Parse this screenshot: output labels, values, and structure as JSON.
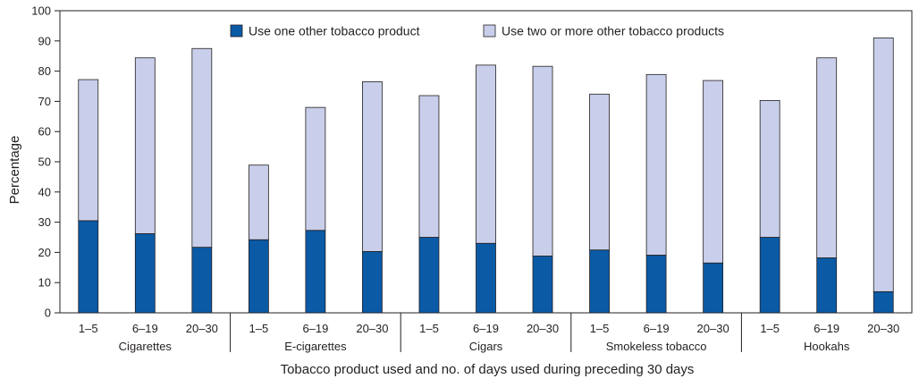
{
  "chart_data": {
    "type": "bar",
    "stacked": true,
    "ylabel": "Percentage",
    "xlabel": "Tobacco product used and no. of days used during preceding 30 days",
    "ylim": [
      0,
      100
    ],
    "yticks": [
      0,
      10,
      20,
      30,
      40,
      50,
      60,
      70,
      80,
      90,
      100
    ],
    "groups": [
      {
        "label": "Cigarettes",
        "categories": [
          "1–5",
          "6–19",
          "20–30"
        ]
      },
      {
        "label": "E-cigarettes",
        "categories": [
          "1–5",
          "6–19",
          "20–30"
        ]
      },
      {
        "label": "Cigars",
        "categories": [
          "1–5",
          "6–19",
          "20–30"
        ]
      },
      {
        "label": "Smokeless tobacco",
        "categories": [
          "1–5",
          "6–19",
          "20–30"
        ]
      },
      {
        "label": "Hookahs",
        "categories": [
          "1–5",
          "6–19",
          "20–30"
        ]
      }
    ],
    "series": [
      {
        "name": "Use one other tobacco product",
        "color": "#0a5aa6",
        "values": [
          30.5,
          26.2,
          21.7,
          24.2,
          27.3,
          20.3,
          25.0,
          23.0,
          18.8,
          20.8,
          19.1,
          16.5,
          25.0,
          18.2,
          7.0
        ]
      },
      {
        "name": "Use two or more other tobacco products",
        "color": "#c9cfea",
        "values": [
          46.7,
          58.2,
          65.8,
          24.7,
          40.7,
          56.2,
          46.9,
          59.0,
          62.8,
          51.6,
          59.8,
          60.4,
          45.3,
          66.2,
          84.0
        ]
      }
    ],
    "legend_position": "top"
  }
}
